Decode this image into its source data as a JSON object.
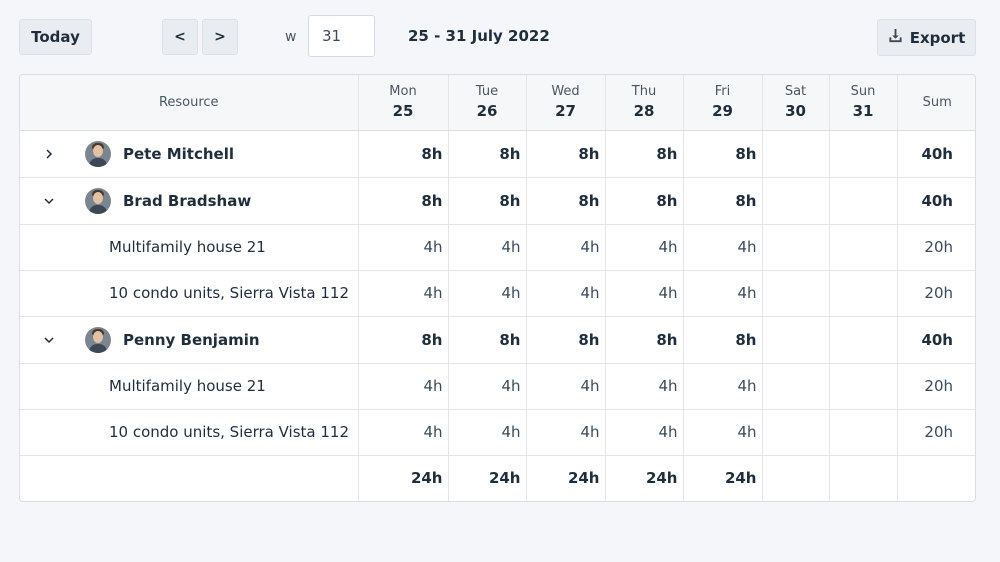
{
  "toolbar": {
    "today_label": "Today",
    "prev_label": "<",
    "next_label": ">",
    "week_prefix": "w",
    "week_value": "31",
    "date_range": "25 - 31 July 2022",
    "export_label": "Export",
    "export_icon": "download-icon"
  },
  "table": {
    "resource_header": "Resource",
    "sum_header": "Sum",
    "days": [
      {
        "name": "Mon",
        "date": "25"
      },
      {
        "name": "Tue",
        "date": "26"
      },
      {
        "name": "Wed",
        "date": "27"
      },
      {
        "name": "Thu",
        "date": "28"
      },
      {
        "name": "Fri",
        "date": "29"
      },
      {
        "name": "Sat",
        "date": "30"
      },
      {
        "name": "Sun",
        "date": "31"
      }
    ],
    "rows": [
      {
        "type": "person",
        "expanded": false,
        "name": "Pete Mitchell",
        "values": [
          "8h",
          "8h",
          "8h",
          "8h",
          "8h",
          "",
          ""
        ],
        "sum": "40h"
      },
      {
        "type": "person",
        "expanded": true,
        "name": "Brad Bradshaw",
        "values": [
          "8h",
          "8h",
          "8h",
          "8h",
          "8h",
          "",
          ""
        ],
        "sum": "40h"
      },
      {
        "type": "task",
        "name": "Multifamily house  21",
        "values": [
          "4h",
          "4h",
          "4h",
          "4h",
          "4h",
          "",
          ""
        ],
        "sum": "20h"
      },
      {
        "type": "task",
        "name": "10 condo units, Sierra Vista 112",
        "values": [
          "4h",
          "4h",
          "4h",
          "4h",
          "4h",
          "",
          ""
        ],
        "sum": "20h"
      },
      {
        "type": "person",
        "expanded": true,
        "name": "Penny Benjamin",
        "values": [
          "8h",
          "8h",
          "8h",
          "8h",
          "8h",
          "",
          ""
        ],
        "sum": "40h"
      },
      {
        "type": "task",
        "name": "Multifamily house  21",
        "values": [
          "4h",
          "4h",
          "4h",
          "4h",
          "4h",
          "",
          ""
        ],
        "sum": "20h"
      },
      {
        "type": "task",
        "name": "10 condo units, Sierra Vista 112",
        "values": [
          "4h",
          "4h",
          "4h",
          "4h",
          "4h",
          "",
          ""
        ],
        "sum": "20h"
      }
    ],
    "totals": [
      "24h",
      "24h",
      "24h",
      "24h",
      "24h",
      "",
      ""
    ],
    "totals_sum": ""
  }
}
